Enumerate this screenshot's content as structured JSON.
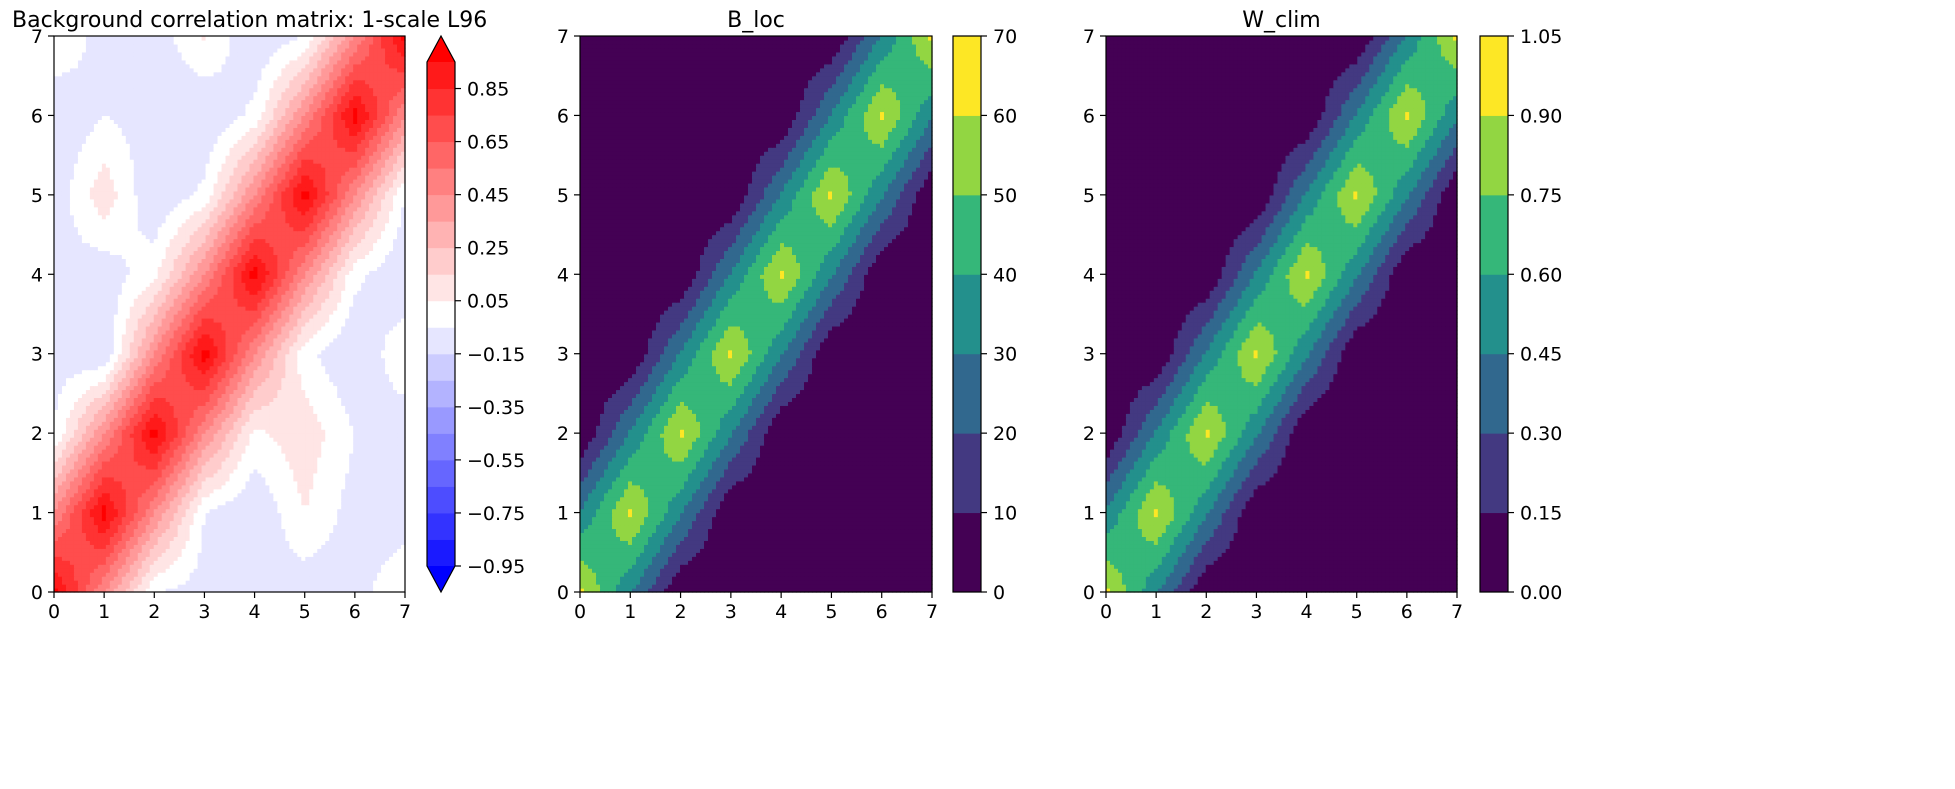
{
  "chart_data": [
    {
      "type": "heatmap",
      "title": "Background correlation matrix: 1-scale L96",
      "xlabel": "",
      "ylabel": "",
      "xlim": [
        0,
        7
      ],
      "ylim": [
        0,
        7
      ],
      "xticks": [
        "0",
        "1",
        "2",
        "3",
        "4",
        "5",
        "6",
        "7"
      ],
      "yticks": [
        "0",
        "1",
        "2",
        "3",
        "4",
        "5",
        "6",
        "7"
      ],
      "colormap": "bwr",
      "levels": [
        -1.05,
        -0.95,
        -0.85,
        -0.75,
        -0.65,
        -0.55,
        -0.45,
        -0.35,
        -0.25,
        -0.15,
        -0.05,
        0.05,
        0.15,
        0.25,
        0.35,
        0.45,
        0.55,
        0.65,
        0.75,
        0.85,
        0.95,
        1.05
      ],
      "colorbar": {
        "ticks": [
          -0.95,
          -0.75,
          -0.55,
          -0.35,
          -0.15,
          0.05,
          0.25,
          0.45,
          0.65,
          0.85
        ],
        "tick_labels": [
          "−0.95",
          "−0.75",
          "−0.55",
          "−0.35",
          "−0.15",
          "0.05",
          "0.25",
          "0.45",
          "0.65",
          "0.85"
        ],
        "extend": "both",
        "range": [
          -0.95,
          0.95
        ]
      },
      "grid_values": [
        [
          1.0,
          0.45,
          -0.05,
          -0.1,
          -0.08,
          -0.12,
          -0.1,
          0.05
        ],
        [
          0.45,
          1.0,
          0.45,
          -0.05,
          -0.15,
          0.05,
          -0.1,
          -0.12
        ],
        [
          -0.05,
          0.45,
          1.0,
          0.45,
          0.02,
          0.12,
          -0.05,
          -0.12
        ],
        [
          -0.1,
          -0.15,
          0.45,
          1.0,
          0.45,
          -0.02,
          -0.15,
          0.03
        ],
        [
          -0.08,
          -0.12,
          0.02,
          0.45,
          1.0,
          0.45,
          -0.02,
          -0.15
        ],
        [
          -0.12,
          0.12,
          -0.15,
          -0.02,
          0.45,
          1.0,
          0.45,
          -0.05
        ],
        [
          -0.15,
          -0.05,
          -0.1,
          -0.15,
          -0.02,
          0.45,
          1.0,
          0.45
        ],
        [
          0.05,
          -0.1,
          -0.12,
          0.06,
          -0.15,
          -0.05,
          0.45,
          1.0
        ]
      ]
    },
    {
      "type": "heatmap",
      "title": "B_loc",
      "xlabel": "",
      "ylabel": "",
      "xlim": [
        0,
        7
      ],
      "ylim": [
        0,
        7
      ],
      "xticks": [
        "0",
        "1",
        "2",
        "3",
        "4",
        "5",
        "6",
        "7"
      ],
      "yticks": [
        "0",
        "1",
        "2",
        "3",
        "4",
        "5",
        "6",
        "7"
      ],
      "colormap": "viridis",
      "levels": [
        0,
        10,
        20,
        30,
        40,
        50,
        60,
        70
      ],
      "colorbar": {
        "ticks": [
          0,
          10,
          20,
          30,
          40,
          50,
          60,
          70
        ],
        "tick_labels": [
          "0",
          "10",
          "20",
          "30",
          "40",
          "50",
          "60",
          "70"
        ],
        "extend": "neither",
        "range": [
          0,
          70
        ]
      },
      "grid_values": [
        [
          62,
          31,
          0,
          0,
          0,
          0,
          0,
          0
        ],
        [
          31,
          62,
          31,
          0,
          0,
          0,
          0,
          0
        ],
        [
          0,
          31,
          62,
          31,
          0,
          0,
          0,
          0
        ],
        [
          0,
          0,
          31,
          62,
          31,
          0,
          0,
          0
        ],
        [
          0,
          0,
          0,
          31,
          62,
          31,
          0,
          0
        ],
        [
          0,
          0,
          0,
          0,
          31,
          62,
          31,
          0
        ],
        [
          0,
          0,
          0,
          0,
          0,
          31,
          62,
          31
        ],
        [
          0,
          0,
          0,
          0,
          0,
          0,
          31,
          62
        ]
      ]
    },
    {
      "type": "heatmap",
      "title": "W_clim",
      "xlabel": "",
      "ylabel": "",
      "xlim": [
        0,
        7
      ],
      "ylim": [
        0,
        7
      ],
      "xticks": [
        "0",
        "1",
        "2",
        "3",
        "4",
        "5",
        "6",
        "7"
      ],
      "yticks": [
        "0",
        "1",
        "2",
        "3",
        "4",
        "5",
        "6",
        "7"
      ],
      "colormap": "viridis",
      "levels": [
        0,
        0.15,
        0.3,
        0.45,
        0.6,
        0.75,
        0.9,
        1.05
      ],
      "colorbar": {
        "ticks": [
          0,
          0.15,
          0.3,
          0.45,
          0.6,
          0.75,
          0.9,
          1.05
        ],
        "tick_labels": [
          "0.00",
          "0.15",
          "0.30",
          "0.45",
          "0.60",
          "0.75",
          "0.90",
          "1.05"
        ],
        "extend": "neither",
        "range": [
          0,
          1.05
        ]
      },
      "grid_values": [
        [
          0.93,
          0.47,
          0,
          0,
          0,
          0,
          0,
          0
        ],
        [
          0.47,
          0.93,
          0.47,
          0,
          0,
          0,
          0,
          0
        ],
        [
          0,
          0.47,
          0.93,
          0.47,
          0,
          0,
          0,
          0
        ],
        [
          0,
          0,
          0.47,
          0.93,
          0.47,
          0,
          0,
          0
        ],
        [
          0,
          0,
          0,
          0.47,
          0.93,
          0.47,
          0,
          0
        ],
        [
          0,
          0,
          0,
          0,
          0.47,
          0.93,
          0.47,
          0
        ],
        [
          0,
          0,
          0,
          0,
          0,
          0.47,
          0.93,
          0.47
        ],
        [
          0,
          0,
          0,
          0,
          0,
          0,
          0.47,
          0.93
        ]
      ]
    }
  ]
}
